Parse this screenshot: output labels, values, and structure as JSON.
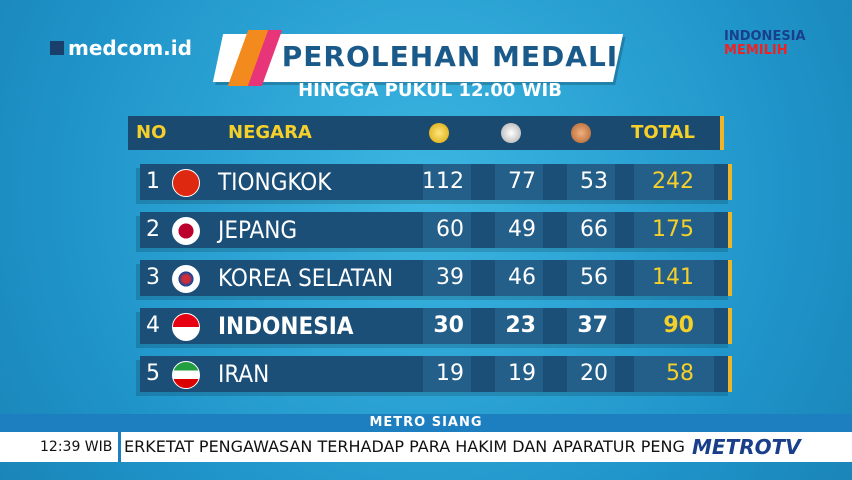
{
  "header": {
    "channel": "medcom.id",
    "title": "PEROLEHAN MEDALI",
    "subtitle": "HINGGA PUKUL 12.00 WIB",
    "badge_top": "INDONESIA",
    "badge_bottom": "MEMILIH"
  },
  "table": {
    "columns": [
      "NO",
      "NEGARA",
      "TOTAL"
    ],
    "rows": [
      [
        "1",
        "TIONGKOK",
        "112",
        "77",
        "53",
        "242"
      ],
      [
        "2",
        "JEPANG",
        "60",
        "49",
        "66",
        "175"
      ],
      [
        "3",
        "KOREA SELATAN",
        "39",
        "46",
        "56",
        "141"
      ],
      [
        "4",
        "INDONESIA",
        "30",
        "23",
        "37",
        "90"
      ],
      [
        "5",
        "IRAN",
        "19",
        "19",
        "20",
        "58"
      ]
    ]
  },
  "footer": {
    "program": "METRO SIANG",
    "time": "12:39 WIB",
    "ticker": "ERKETAT PENGAWASAN TERHADAP PARA HAKIM DAN APARATUR PENGADI",
    "logo_left": "METRO",
    "logo_right": "TV"
  }
}
